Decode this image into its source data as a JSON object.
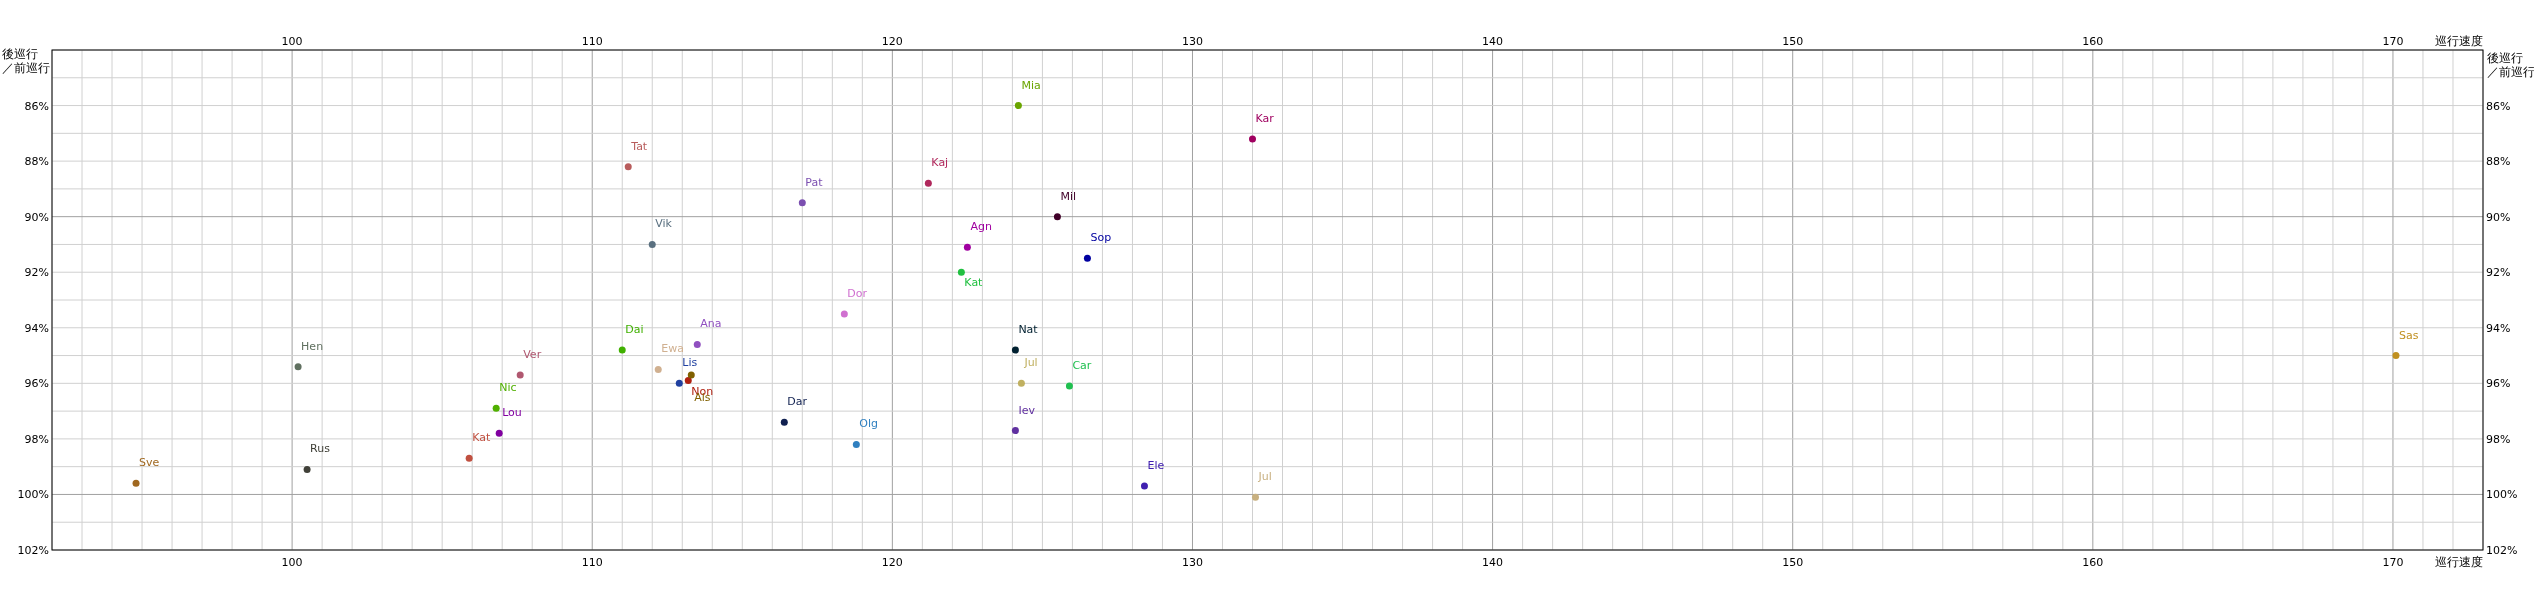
{
  "chart_data": {
    "type": "scatter",
    "xlabel": "巡行速度",
    "x2label": "巡行速度",
    "ylabel": "後巡行／前巡行",
    "y2label": "後巡行／前巡行",
    "marker": "circle",
    "grid": true,
    "xlim": [
      92,
      173
    ],
    "x2lim": [
      92,
      173
    ],
    "ylim": [
      102,
      84
    ],
    "y2lim": [
      102,
      84
    ],
    "xticks": [
      {
        "value": 92,
        "label": null
      },
      {
        "value": 93,
        "label": null
      },
      {
        "value": 94,
        "label": null
      },
      {
        "value": 95,
        "label": null
      },
      {
        "value": 96,
        "label": null
      },
      {
        "value": 97,
        "label": null
      },
      {
        "value": 98,
        "label": null
      },
      {
        "value": 99,
        "label": null
      },
      100,
      {
        "value": 101,
        "label": null
      },
      {
        "value": 102,
        "label": null
      },
      {
        "value": 103,
        "label": null
      },
      {
        "value": 104,
        "label": null
      },
      {
        "value": 105,
        "label": null
      },
      {
        "value": 106,
        "label": null
      },
      {
        "value": 107,
        "label": null
      },
      {
        "value": 108,
        "label": null
      },
      {
        "value": 109,
        "label": null
      },
      110,
      {
        "value": 111,
        "label": null
      },
      {
        "value": 112,
        "label": null
      },
      {
        "value": 113,
        "label": null
      },
      {
        "value": 114,
        "label": null
      },
      {
        "value": 115,
        "label": null
      },
      {
        "value": 116,
        "label": null
      },
      {
        "value": 117,
        "label": null
      },
      {
        "value": 118,
        "label": null
      },
      {
        "value": 119,
        "label": null
      },
      120,
      {
        "value": 121,
        "label": null
      },
      {
        "value": 122,
        "label": null
      },
      {
        "value": 123,
        "label": null
      },
      {
        "value": 124,
        "label": null
      },
      {
        "value": 125,
        "label": null
      },
      {
        "value": 126,
        "label": null
      },
      {
        "value": 127,
        "label": null
      },
      {
        "value": 128,
        "label": null
      },
      {
        "value": 129,
        "label": null
      },
      130,
      {
        "value": 131,
        "label": null
      },
      {
        "value": 132,
        "label": null
      },
      {
        "value": 133,
        "label": null
      },
      {
        "value": 134,
        "label": null
      },
      {
        "value": 135,
        "label": null
      },
      {
        "value": 136,
        "label": null
      },
      {
        "value": 137,
        "label": null
      },
      {
        "value": 138,
        "label": null
      },
      {
        "value": 139,
        "label": null
      },
      140,
      {
        "value": 141,
        "label": null
      },
      {
        "value": 142,
        "label": null
      },
      {
        "value": 143,
        "label": null
      },
      {
        "value": 144,
        "label": null
      },
      {
        "value": 145,
        "label": null
      },
      {
        "value": 146,
        "label": null
      },
      {
        "value": 147,
        "label": null
      },
      {
        "value": 148,
        "label": null
      },
      {
        "value": 149,
        "label": null
      },
      150,
      {
        "value": 151,
        "label": null
      },
      {
        "value": 152,
        "label": null
      },
      {
        "value": 153,
        "label": null
      },
      {
        "value": 154,
        "label": null
      },
      {
        "value": 155,
        "label": null
      },
      {
        "value": 156,
        "label": null
      },
      {
        "value": 157,
        "label": null
      },
      {
        "value": 158,
        "label": null
      },
      {
        "value": 159,
        "label": null
      },
      160,
      {
        "value": 161,
        "label": null
      },
      {
        "value": 162,
        "label": null
      },
      {
        "value": 163,
        "label": null
      },
      {
        "value": 164,
        "label": null
      },
      {
        "value": 165,
        "label": null
      },
      {
        "value": 166,
        "label": null
      },
      {
        "value": 167,
        "label": null
      },
      {
        "value": 168,
        "label": null
      },
      {
        "value": 169,
        "label": null
      },
      170,
      {
        "value": 171,
        "label": null
      },
      {
        "value": 172,
        "label": null
      },
      {
        "value": 173,
        "label": null
      }
    ],
    "x2ticks": [
      100,
      110,
      120,
      130,
      140,
      150,
      160,
      170
    ],
    "yticks": [
      {
        "value": 84,
        "label": null
      },
      {
        "value": 85,
        "label": null
      },
      {
        "value": 86,
        "label": "86%"
      },
      {
        "value": 87,
        "label": null
      },
      {
        "value": 88,
        "label": "88%"
      },
      {
        "value": 89,
        "label": null
      },
      {
        "value": 90,
        "label": "90%"
      },
      {
        "value": 91,
        "label": null
      },
      {
        "value": 92,
        "label": "92%"
      },
      {
        "value": 93,
        "label": null
      },
      {
        "value": 94,
        "label": "94%"
      },
      {
        "value": 95,
        "label": null
      },
      {
        "value": 96,
        "label": "96%"
      },
      {
        "value": 97,
        "label": null
      },
      {
        "value": 98,
        "label": "98%"
      },
      {
        "value": 99,
        "label": null
      },
      {
        "value": 100,
        "label": "100%"
      },
      {
        "value": 101,
        "label": null
      },
      {
        "value": 102,
        "label": "102%"
      }
    ],
    "y2ticks": [
      {
        "value": 86,
        "label": "86%"
      },
      {
        "value": 88,
        "label": "88%"
      },
      {
        "value": 90,
        "label": "90%"
      },
      {
        "value": 92,
        "label": "92%"
      },
      {
        "value": 94,
        "label": "94%"
      },
      {
        "value": 96,
        "label": "96%"
      },
      {
        "value": 98,
        "label": "98%"
      },
      {
        "value": 100,
        "label": "100%"
      },
      {
        "value": 102,
        "label": "102%"
      }
    ],
    "series": [
      {
        "name": "Tat",
        "color": "#b85c5c",
        "x": [
          111.2
        ],
        "values": [
          88.2
        ]
      },
      {
        "name": "Vik",
        "color": "#5a7080",
        "x": [
          112.0
        ],
        "values": [
          91.0
        ]
      },
      {
        "name": "Pat",
        "color": "#7b4fb0",
        "x": [
          117.0
        ],
        "values": [
          89.5
        ]
      },
      {
        "name": "Kaj",
        "color": "#b0285c",
        "x": [
          121.2
        ],
        "values": [
          88.8
        ]
      },
      {
        "name": "Mia",
        "color": "#6aa500",
        "x": [
          124.2
        ],
        "values": [
          86.0
        ]
      },
      {
        "name": "Kar",
        "color": "#a00060",
        "x": [
          132.0
        ],
        "values": [
          87.2
        ]
      },
      {
        "name": "Mil",
        "color": "#400028",
        "x": [
          125.5
        ],
        "values": [
          90.0
        ]
      },
      {
        "name": "Agn",
        "color": "#a000a0",
        "x": [
          122.5
        ],
        "values": [
          91.1
        ]
      },
      {
        "name": "Sop",
        "color": "#0000a0",
        "x": [
          126.5
        ],
        "values": [
          91.5
        ]
      },
      {
        "name": "Kat",
        "color": "#20c040",
        "x": [
          122.3
        ],
        "values": [
          92.0
        ]
      },
      {
        "name": "Hen",
        "color": "#607060",
        "x": [
          100.2
        ],
        "values": [
          95.4
        ]
      },
      {
        "name": "Rus",
        "color": "#404038",
        "x": [
          100.5
        ],
        "values": [
          99.1
        ]
      },
      {
        "name": "Sve",
        "color": "#a06820",
        "x": [
          94.8
        ],
        "values": [
          99.6
        ]
      },
      {
        "name": "Kat",
        "color": "#c05040",
        "x": [
          105.9
        ],
        "values": [
          98.7
        ]
      },
      {
        "name": "Nic",
        "color": "#50b000",
        "x": [
          106.8
        ],
        "values": [
          96.9
        ]
      },
      {
        "name": "Lou",
        "color": "#8000a0",
        "x": [
          106.9
        ],
        "values": [
          97.8
        ]
      },
      {
        "name": "Ver",
        "color": "#b05870",
        "x": [
          107.6
        ],
        "values": [
          95.7
        ]
      },
      {
        "name": "Dai",
        "color": "#40b000",
        "x": [
          111.0
        ],
        "values": [
          94.8
        ]
      },
      {
        "name": "Ewa",
        "color": "#d0b090",
        "x": [
          112.2
        ],
        "values": [
          95.5
        ]
      },
      {
        "name": "Ana",
        "color": "#9050c0",
        "x": [
          113.5
        ],
        "values": [
          94.6
        ]
      },
      {
        "name": "Lis",
        "color": "#2040a0",
        "x": [
          112.9
        ],
        "values": [
          96.0
        ]
      },
      {
        "name": "Non",
        "color": "#b02010",
        "x": [
          113.2
        ],
        "values": [
          95.9
        ]
      },
      {
        "name": "Als",
        "color": "#806000",
        "x": [
          113.3
        ],
        "values": [
          95.7
        ]
      },
      {
        "name": "Dor",
        "color": "#d070d0",
        "x": [
          118.4
        ],
        "values": [
          93.5
        ]
      },
      {
        "name": "Dar",
        "color": "#102050",
        "x": [
          116.4
        ],
        "values": [
          97.4
        ]
      },
      {
        "name": "Olg",
        "color": "#3080c0",
        "x": [
          118.8
        ],
        "values": [
          98.2
        ]
      },
      {
        "name": "Nat",
        "color": "#002030",
        "x": [
          124.1
        ],
        "values": [
          94.8
        ]
      },
      {
        "name": "Jul",
        "color": "#c0b060",
        "x": [
          124.3
        ],
        "values": [
          96.0
        ]
      },
      {
        "name": "Car",
        "color": "#20c050",
        "x": [
          125.9
        ],
        "values": [
          96.1
        ]
      },
      {
        "name": "Iev",
        "color": "#6030a0",
        "x": [
          124.1
        ],
        "values": [
          97.7
        ]
      },
      {
        "name": "Ele",
        "color": "#4020b0",
        "x": [
          128.4
        ],
        "values": [
          99.7
        ]
      },
      {
        "name": "Jul",
        "color": "#c8b080",
        "x": [
          132.1
        ],
        "values": [
          100.1
        ]
      },
      {
        "name": "Sas",
        "color": "#c09020",
        "x": [
          170.1
        ],
        "values": [
          95.0
        ]
      }
    ]
  }
}
